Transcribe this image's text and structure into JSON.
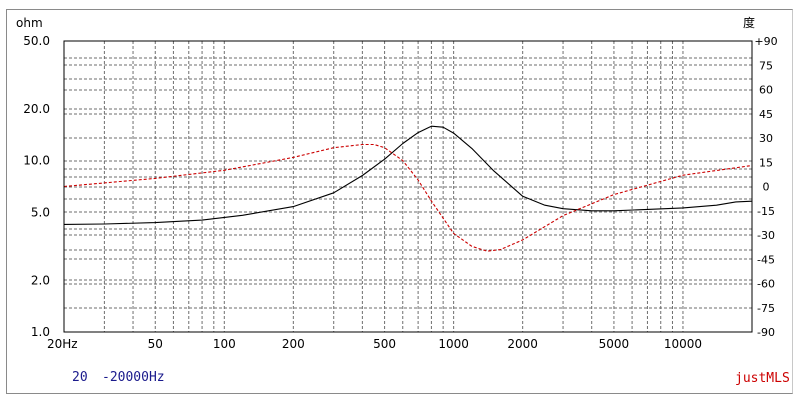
{
  "chart_data": {
    "type": "line",
    "left_unit": "ohm",
    "right_unit": "度",
    "x_ticks": [
      {
        "value": 20,
        "label": "20Hz"
      },
      {
        "value": 50,
        "label": "50"
      },
      {
        "value": 100,
        "label": "100"
      },
      {
        "value": 200,
        "label": "200"
      },
      {
        "value": 500,
        "label": "500"
      },
      {
        "value": 1000,
        "label": "1000"
      },
      {
        "value": 2000,
        "label": "2000"
      },
      {
        "value": 5000,
        "label": "5000"
      },
      {
        "value": 10000,
        "label": "10000"
      }
    ],
    "y_left_ticks": [
      {
        "value": 50,
        "label": "50.0"
      },
      {
        "value": 20,
        "label": "20.0"
      },
      {
        "value": 10,
        "label": "10.0"
      },
      {
        "value": 5,
        "label": "5.0"
      },
      {
        "value": 2,
        "label": "2.0"
      },
      {
        "value": 1,
        "label": "1.0"
      }
    ],
    "y_right_ticks": [
      {
        "value": 90,
        "label": "+90"
      },
      {
        "value": 75,
        "label": "75"
      },
      {
        "value": 60,
        "label": "60"
      },
      {
        "value": 45,
        "label": "45"
      },
      {
        "value": 30,
        "label": "30"
      },
      {
        "value": 15,
        "label": "15"
      },
      {
        "value": 0,
        "label": "0"
      },
      {
        "value": -15,
        "label": "-15"
      },
      {
        "value": -30,
        "label": "-30"
      },
      {
        "value": -45,
        "label": "-45"
      },
      {
        "value": -60,
        "label": "-60"
      },
      {
        "value": -75,
        "label": "-75"
      },
      {
        "value": -90,
        "label": "-90"
      }
    ],
    "xlim": [
      20,
      20000
    ],
    "ylim_left": [
      1,
      50
    ],
    "ylim_right": [
      -90,
      90
    ],
    "x_scale": "log",
    "y_left_scale": "log",
    "grid": true,
    "series": [
      {
        "color": "#000000",
        "axis": "left",
        "style": "solid",
        "x": [
          20,
          30,
          50,
          80,
          120,
          200,
          300,
          400,
          500,
          600,
          700,
          800,
          900,
          1000,
          1200,
          1500,
          2000,
          2500,
          3000,
          4000,
          5000,
          7000,
          10000,
          14000,
          17000,
          20000
        ],
        "y": [
          4.25,
          4.27,
          4.35,
          4.5,
          4.8,
          5.4,
          6.5,
          8.2,
          10.2,
          12.6,
          14.6,
          15.9,
          15.7,
          14.5,
          11.8,
          8.7,
          6.2,
          5.5,
          5.25,
          5.1,
          5.1,
          5.2,
          5.3,
          5.5,
          5.75,
          5.8
        ]
      },
      {
        "color": "#cc0000",
        "axis": "right",
        "style": "dashed",
        "x": [
          20,
          50,
          100,
          200,
          300,
          400,
          450,
          500,
          600,
          700,
          800,
          1000,
          1200,
          1400,
          1600,
          2000,
          3000,
          5000,
          10000,
          20000
        ],
        "y": [
          0,
          5,
          10,
          18,
          24,
          26,
          26,
          24,
          16,
          4,
          -9,
          -29,
          -37,
          -40,
          -39,
          -33,
          -18,
          -5,
          7,
          13
        ]
      }
    ]
  },
  "footer": {
    "range_start": "20",
    "range_end": "-20000Hz",
    "brand": "justMLS"
  }
}
